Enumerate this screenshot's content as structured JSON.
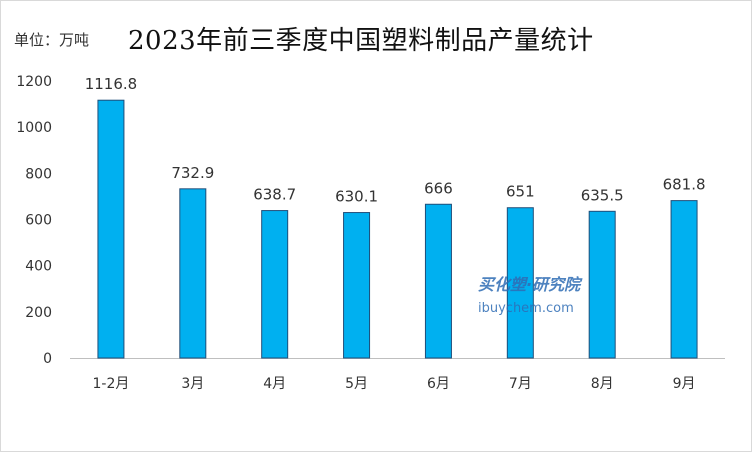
{
  "header": {
    "unit": "单位：万吨",
    "title": "2023年前三季度中国塑料制品产量统计"
  },
  "watermark": {
    "cn": "买化塑·研究院",
    "en": "ibuychem.com"
  },
  "colors": {
    "bar_fill": "#00b0f0",
    "bar_stroke": "#1f4e79",
    "axis": "#bfbfbf",
    "watermark": "#2f6db5"
  },
  "chart_data": {
    "type": "bar",
    "title": "2023年前三季度中国塑料制品产量统计",
    "ylabel": "",
    "xlabel": "",
    "categories": [
      "1-2月",
      "3月",
      "4月",
      "5月",
      "6月",
      "7月",
      "8月",
      "9月"
    ],
    "values": [
      1116.8,
      732.9,
      638.7,
      630.1,
      666,
      651,
      635.5,
      681.8
    ],
    "value_labels": [
      "1116.8",
      "732.9",
      "638.7",
      "630.1",
      "666",
      "651",
      "635.5",
      "681.8"
    ],
    "ylim": [
      0,
      1200
    ],
    "yticks": [
      "0",
      "200",
      "400",
      "600",
      "800",
      "1000",
      "1200"
    ],
    "grid": false,
    "legend": "none"
  }
}
